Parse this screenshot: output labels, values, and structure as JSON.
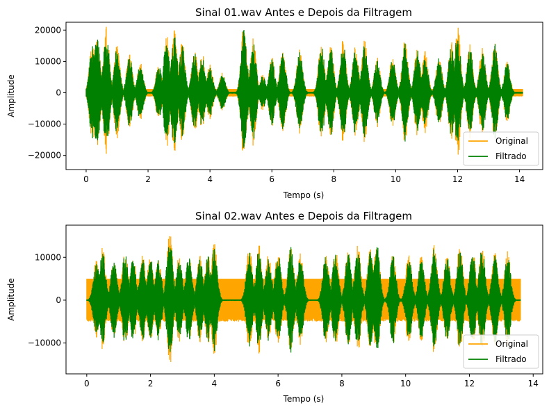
{
  "chart_data": [
    {
      "type": "line",
      "title": "Sinal 01.wav Antes e Depois da Filtragem",
      "xlabel": "Tempo (s)",
      "ylabel": "Amplitude",
      "xlim": [
        -0.65,
        14.75
      ],
      "ylim": [
        -24500,
        22500
      ],
      "xticks": [
        0,
        2,
        4,
        6,
        8,
        10,
        12,
        14
      ],
      "xtick_labels": [
        "0",
        "2",
        "4",
        "6",
        "8",
        "10",
        "12",
        "14"
      ],
      "yticks": [
        -20000,
        -10000,
        0,
        10000,
        20000
      ],
      "ytick_labels": [
        "−20000",
        "−10000",
        "0",
        "10000",
        "20000"
      ],
      "duration": 14.1,
      "legend_position": "lower-right",
      "grid": false,
      "series": [
        {
          "name": "Original",
          "color": "#ffa500",
          "floor": 1200
        },
        {
          "name": "Filtrado",
          "color": "#008000",
          "floor": 250
        }
      ],
      "envelope_peaks": [
        [
          0.2,
          16500
        ],
        [
          0.35,
          20000
        ],
        [
          0.65,
          21500
        ],
        [
          1.0,
          15500
        ],
        [
          1.4,
          12500
        ],
        [
          1.75,
          10000
        ],
        [
          2.35,
          9500
        ],
        [
          2.6,
          19000
        ],
        [
          2.85,
          20500
        ],
        [
          3.1,
          17000
        ],
        [
          3.5,
          14000
        ],
        [
          3.75,
          12500
        ],
        [
          4.0,
          9000
        ],
        [
          4.4,
          6500
        ],
        [
          5.1,
          22000
        ],
        [
          5.4,
          17500
        ],
        [
          5.7,
          6000
        ],
        [
          6.0,
          11500
        ],
        [
          6.35,
          15000
        ],
        [
          6.9,
          14500
        ],
        [
          7.6,
          16500
        ],
        [
          7.9,
          15500
        ],
        [
          8.3,
          17500
        ],
        [
          8.7,
          15500
        ],
        [
          9.0,
          17000
        ],
        [
          9.4,
          11500
        ],
        [
          9.9,
          12000
        ],
        [
          10.3,
          17000
        ],
        [
          10.7,
          15000
        ],
        [
          10.95,
          13500
        ],
        [
          11.4,
          12000
        ],
        [
          11.8,
          16500
        ],
        [
          12.0,
          21500
        ],
        [
          12.4,
          16000
        ],
        [
          12.8,
          15000
        ],
        [
          13.2,
          17000
        ],
        [
          13.6,
          10500
        ]
      ]
    },
    {
      "type": "line",
      "title": "Sinal 02.wav Antes e Depois da Filtragem",
      "xlabel": "Tempo (s)",
      "ylabel": "Amplitude",
      "xlim": [
        -0.65,
        14.3
      ],
      "ylim": [
        -17200,
        17500
      ],
      "xticks": [
        0,
        2,
        4,
        6,
        8,
        10,
        12,
        14
      ],
      "xtick_labels": [
        "0",
        "2",
        "4",
        "6",
        "8",
        "10",
        "12",
        "14"
      ],
      "yticks": [
        -10000,
        0,
        10000
      ],
      "ytick_labels": [
        "−10000",
        "0",
        "10000"
      ],
      "duration": 13.6,
      "legend_position": "lower-right",
      "grid": false,
      "series": [
        {
          "name": "Original",
          "color": "#ffa500",
          "floor": 5000
        },
        {
          "name": "Filtrado",
          "color": "#008000",
          "floor": 150
        }
      ],
      "envelope_peaks": [
        [
          0.3,
          9500
        ],
        [
          0.5,
          12500
        ],
        [
          0.85,
          10000
        ],
        [
          1.2,
          12000
        ],
        [
          1.45,
          10500
        ],
        [
          1.75,
          10500
        ],
        [
          2.0,
          11000
        ],
        [
          2.25,
          10500
        ],
        [
          2.6,
          16500
        ],
        [
          2.9,
          10500
        ],
        [
          3.2,
          11000
        ],
        [
          3.55,
          10500
        ],
        [
          3.8,
          11500
        ],
        [
          4.0,
          13500
        ],
        [
          5.1,
          13000
        ],
        [
          5.4,
          13000
        ],
        [
          5.7,
          11000
        ],
        [
          6.0,
          12000
        ],
        [
          6.4,
          13500
        ],
        [
          6.7,
          11000
        ],
        [
          7.5,
          11500
        ],
        [
          7.8,
          12000
        ],
        [
          8.2,
          12000
        ],
        [
          8.5,
          13000
        ],
        [
          8.9,
          13000
        ],
        [
          9.1,
          14000
        ],
        [
          9.6,
          11500
        ],
        [
          10.1,
          11000
        ],
        [
          10.5,
          11000
        ],
        [
          10.9,
          13000
        ],
        [
          11.3,
          11000
        ],
        [
          11.7,
          13000
        ],
        [
          12.1,
          12000
        ],
        [
          12.4,
          13500
        ],
        [
          12.8,
          11500
        ],
        [
          13.2,
          11500
        ]
      ]
    }
  ]
}
